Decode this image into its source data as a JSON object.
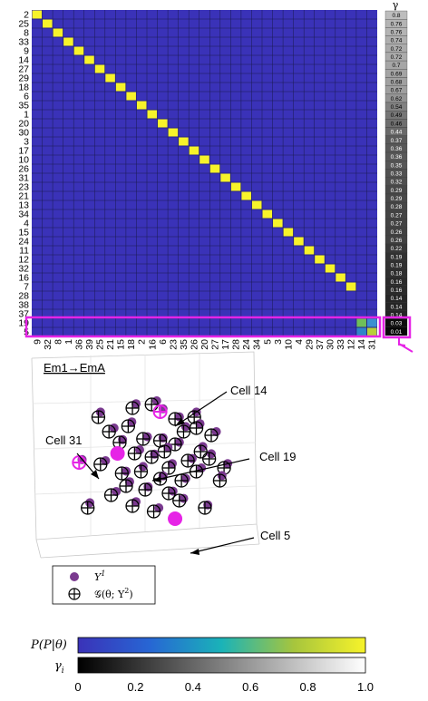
{
  "chart_data": [
    {
      "type": "heatmap",
      "title": "",
      "row_labels": [
        "2",
        "25",
        "8",
        "33",
        "9",
        "14",
        "27",
        "29",
        "18",
        "6",
        "35",
        "1",
        "20",
        "30",
        "3",
        "17",
        "10",
        "26",
        "31",
        "23",
        "21",
        "13",
        "34",
        "4",
        "15",
        "24",
        "11",
        "12",
        "32",
        "16",
        "7",
        "28",
        "38",
        "37",
        "19",
        "5"
      ],
      "col_labels": [
        "9",
        "32",
        "8",
        "1",
        "36",
        "39",
        "25",
        "21",
        "15",
        "18",
        "2",
        "16",
        "6",
        "23",
        "35",
        "26",
        "20",
        "27",
        "17",
        "28",
        "24",
        "34",
        "5",
        "3",
        "10",
        "4",
        "29",
        "37",
        "30",
        "33",
        "12",
        "14",
        "31"
      ],
      "matrix_description": "identity-like: row i (0..33) has value 1 at column i; remaining cells near 0",
      "bottom_rows": [
        {
          "row": "19",
          "cells": [
            {
              "col": "14",
              "value": 0.55
            },
            {
              "col": "31",
              "value": 0.2
            }
          ]
        },
        {
          "row": "5",
          "cells": [
            {
              "col": "14",
              "value": 0.2
            },
            {
              "col": "31",
              "value": 0.75
            }
          ]
        }
      ],
      "gamma_header": "γ",
      "gamma_values": [
        "0.8",
        "0.76",
        "0.76",
        "0.74",
        "0.72",
        "0.72",
        "0.7",
        "0.69",
        "0.68",
        "0.67",
        "0.62",
        "0.54",
        "0.49",
        "0.46",
        "0.44",
        "0.37",
        "0.36",
        "0.36",
        "0.35",
        "0.33",
        "0.32",
        "0.29",
        "0.29",
        "0.28",
        "0.27",
        "0.27",
        "0.26",
        "0.26",
        "0.22",
        "0.19",
        "0.19",
        "0.18",
        "0.16",
        "0.16",
        "0.14",
        "0.14",
        "0.14",
        "0.03",
        "0.01"
      ]
    },
    {
      "type": "scatter",
      "title": "Em1→EmA",
      "annotations": [
        "Cell 14",
        "Cell 31",
        "Cell 19",
        "Cell 5"
      ],
      "legend": {
        "y1": "Y",
        "y1_sup": "1",
        "g": "𝒢(θ; Y",
        "g_sup": "2",
        "g_close": ")"
      },
      "points": [
        [
          0.27,
          0.2
        ],
        [
          0.43,
          0.15
        ],
        [
          0.52,
          0.13
        ],
        [
          0.56,
          0.17
        ],
        [
          0.63,
          0.21
        ],
        [
          0.72,
          0.2
        ],
        [
          0.41,
          0.25
        ],
        [
          0.32,
          0.28
        ],
        [
          0.37,
          0.34
        ],
        [
          0.48,
          0.32
        ],
        [
          0.67,
          0.28
        ],
        [
          0.73,
          0.26
        ],
        [
          0.8,
          0.3
        ],
        [
          0.56,
          0.33
        ],
        [
          0.63,
          0.35
        ],
        [
          0.75,
          0.39
        ],
        [
          0.58,
          0.39
        ],
        [
          0.44,
          0.4
        ],
        [
          0.52,
          0.42
        ],
        [
          0.69,
          0.44
        ],
        [
          0.79,
          0.43
        ],
        [
          0.86,
          0.48
        ],
        [
          0.28,
          0.46
        ],
        [
          0.18,
          0.45
        ],
        [
          0.38,
          0.51
        ],
        [
          0.47,
          0.5
        ],
        [
          0.6,
          0.48
        ],
        [
          0.73,
          0.5
        ],
        [
          0.56,
          0.54
        ],
        [
          0.66,
          0.55
        ],
        [
          0.84,
          0.55
        ],
        [
          0.4,
          0.58
        ],
        [
          0.33,
          0.63
        ],
        [
          0.49,
          0.6
        ],
        [
          0.6,
          0.62
        ],
        [
          0.22,
          0.7
        ],
        [
          0.43,
          0.69
        ],
        [
          0.53,
          0.72
        ],
        [
          0.77,
          0.7
        ],
        [
          0.65,
          0.66
        ]
      ],
      "highlight_points": [
        {
          "label": "Cell 14",
          "x": 0.56,
          "y": 0.17,
          "kind": "ring"
        },
        {
          "label": "Cell 31",
          "x": 0.18,
          "y": 0.45,
          "kind": "ring"
        },
        {
          "label": "Cell 19",
          "x": 0.36,
          "y": 0.4,
          "kind": "dot"
        },
        {
          "label": "Cell 5",
          "x": 0.63,
          "y": 0.76,
          "kind": "dot"
        }
      ]
    },
    {
      "type": "colorbar",
      "label_top": "P(P|θ)",
      "label_bottom": "γ",
      "label_bottom_sub": "i",
      "ticks": [
        "0",
        "0.2",
        "0.4",
        "0.6",
        "0.8",
        "1.0"
      ],
      "colors": {
        "viridis_start": "#3a32b8",
        "viridis_mid": "#1ab3b8",
        "viridis_end": "#f7f32a",
        "gray_start": "#000000",
        "gray_end": "#ffffff"
      }
    }
  ],
  "colors": {
    "cell_bg": "#3a32b8",
    "diag": "#f7f32a",
    "highlight": "#e624e6",
    "scatter_dot": "#7a3a8f",
    "grid": "#1a1a50"
  }
}
